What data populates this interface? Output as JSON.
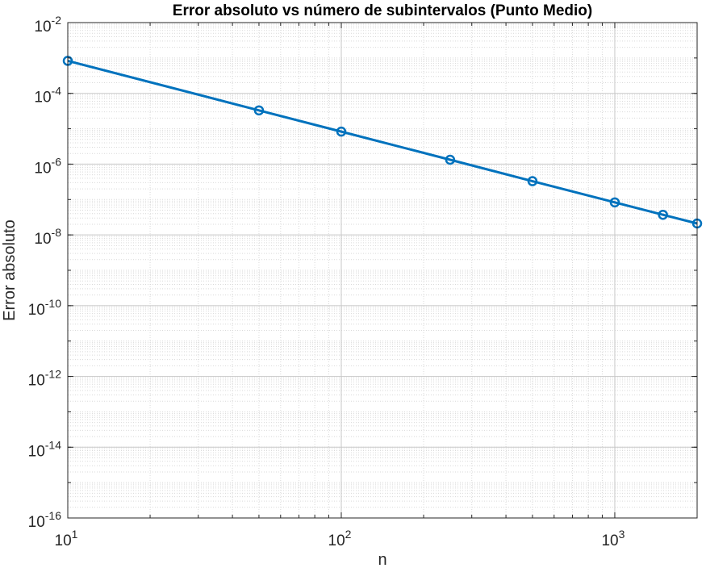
{
  "chart_data": {
    "type": "line",
    "title": "Error absoluto vs número de subintervalos (Punto Medio)",
    "xlabel": "n",
    "ylabel": "Error absoluto",
    "xscale": "log",
    "yscale": "log",
    "xlim": [
      10,
      2000
    ],
    "ylim": [
      1e-16,
      0.01
    ],
    "grid": true,
    "minor_grid": true,
    "x_ticks": [
      {
        "value": 10,
        "base": "10",
        "exp": "1"
      },
      {
        "value": 100,
        "base": "10",
        "exp": "2"
      },
      {
        "value": 1000,
        "base": "10",
        "exp": "3"
      }
    ],
    "y_ticks": [
      {
        "value": 0.01,
        "base": "10",
        "exp": "-2"
      },
      {
        "value": 0.0001,
        "base": "10",
        "exp": "-4"
      },
      {
        "value": 1e-06,
        "base": "10",
        "exp": "-6"
      },
      {
        "value": 1e-08,
        "base": "10",
        "exp": "-8"
      },
      {
        "value": 1e-10,
        "base": "10",
        "exp": "-10"
      },
      {
        "value": 1e-12,
        "base": "10",
        "exp": "-12"
      },
      {
        "value": 1e-14,
        "base": "10",
        "exp": "-14"
      },
      {
        "value": 1e-16,
        "base": "10",
        "exp": "-16"
      }
    ],
    "series": [
      {
        "name": "Punto Medio",
        "color": "#0072BD",
        "marker": "circle",
        "x": [
          10,
          50,
          100,
          250,
          500,
          1000,
          1500,
          2000
        ],
        "y": [
          0.00083,
          3.3e-05,
          8.3e-06,
          1.33e-06,
          3.3e-07,
          8.3e-08,
          3.7e-08,
          2.1e-08
        ]
      }
    ]
  }
}
